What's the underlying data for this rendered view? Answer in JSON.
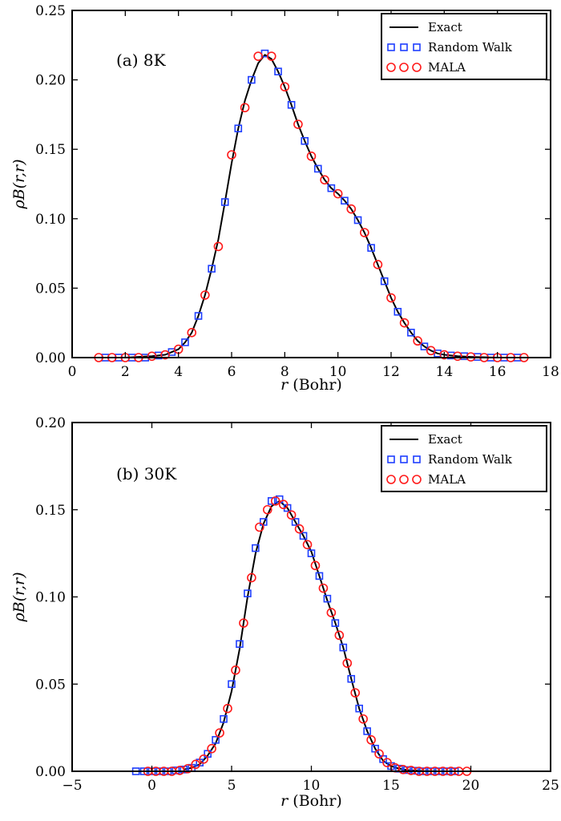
{
  "chart_data": [
    {
      "type": "line",
      "annotation": "(a) 8K",
      "xlabel": "r (Bohr)",
      "ylabel": "ρB(r,r)",
      "xlim": [
        0,
        18
      ],
      "ylim": [
        0,
        0.25
      ],
      "xticks": [
        "0",
        "2",
        "4",
        "6",
        "8",
        "10",
        "12",
        "14",
        "16",
        "18"
      ],
      "yticks": [
        "0.00",
        "0.05",
        "0.10",
        "0.15",
        "0.20",
        "0.25"
      ],
      "legend_position": "top-right",
      "series": [
        {
          "name": "Exact",
          "style": "line",
          "color": "#000000",
          "x": [
            1,
            2,
            3,
            3.25,
            3.5,
            3.75,
            4,
            4.25,
            4.5,
            4.75,
            5,
            5.25,
            5.5,
            5.75,
            6,
            6.25,
            6.5,
            6.75,
            7,
            7.25,
            7.5,
            7.75,
            8,
            8.25,
            8.5,
            8.75,
            9,
            9.25,
            9.5,
            9.75,
            10,
            10.25,
            10.5,
            10.75,
            11,
            11.25,
            11.5,
            11.75,
            12,
            12.25,
            12.5,
            12.75,
            13,
            13.25,
            13.5,
            13.75,
            14,
            14.5,
            15,
            16,
            17
          ],
          "y": [
            0,
            0,
            0.001,
            0.0015,
            0.002,
            0.004,
            0.006,
            0.011,
            0.018,
            0.03,
            0.045,
            0.064,
            0.085,
            0.112,
            0.14,
            0.165,
            0.185,
            0.2,
            0.212,
            0.218,
            0.215,
            0.206,
            0.195,
            0.182,
            0.168,
            0.156,
            0.145,
            0.136,
            0.128,
            0.122,
            0.118,
            0.113,
            0.107,
            0.099,
            0.09,
            0.079,
            0.067,
            0.055,
            0.043,
            0.033,
            0.025,
            0.018,
            0.012,
            0.008,
            0.005,
            0.003,
            0.002,
            0.001,
            0.0005,
            0,
            0
          ]
        },
        {
          "name": "Random Walk",
          "style": "square",
          "color": "#1f3fff",
          "x": [
            1.25,
            1.75,
            2.25,
            2.75,
            3.25,
            3.75,
            4.25,
            4.75,
            5.25,
            5.75,
            6.25,
            6.75,
            7.25,
            7.75,
            8.25,
            8.75,
            9.25,
            9.75,
            10.25,
            10.75,
            11.25,
            11.75,
            12.25,
            12.75,
            13.25,
            13.75,
            14.25,
            14.75,
            15.25,
            15.75,
            16.25,
            16.75
          ],
          "y": [
            0,
            0,
            0,
            0,
            0.0015,
            0.004,
            0.011,
            0.03,
            0.064,
            0.112,
            0.165,
            0.2,
            0.219,
            0.206,
            0.182,
            0.156,
            0.136,
            0.122,
            0.113,
            0.099,
            0.079,
            0.055,
            0.033,
            0.018,
            0.008,
            0.003,
            0.0015,
            0.001,
            0.0005,
            0,
            0,
            0
          ]
        },
        {
          "name": "MALA",
          "style": "circle",
          "color": "#ff1a1a",
          "x": [
            1,
            1.5,
            2,
            2.5,
            3,
            3.5,
            4,
            4.5,
            5,
            5.5,
            6,
            6.5,
            7,
            7.5,
            8,
            8.5,
            9,
            9.5,
            10,
            10.5,
            11,
            11.5,
            12,
            12.5,
            13,
            13.5,
            14,
            14.5,
            15,
            15.5,
            16,
            16.5,
            17
          ],
          "y": [
            0,
            0,
            0,
            0,
            0.001,
            0.002,
            0.006,
            0.018,
            0.045,
            0.08,
            0.146,
            0.18,
            0.217,
            0.217,
            0.195,
            0.168,
            0.145,
            0.128,
            0.118,
            0.107,
            0.09,
            0.067,
            0.043,
            0.025,
            0.012,
            0.005,
            0.002,
            0.001,
            0.0005,
            0,
            0,
            0,
            0
          ]
        }
      ]
    },
    {
      "type": "line",
      "annotation": "(b) 30K",
      "xlabel": "r (Bohr)",
      "ylabel": "ρB(r,r)",
      "xlim": [
        -5,
        25
      ],
      "ylim": [
        0,
        0.2
      ],
      "xticks": [
        "−5",
        "0",
        "5",
        "10",
        "15",
        "20",
        "25"
      ],
      "yticks": [
        "0.00",
        "0.05",
        "0.10",
        "0.15",
        "0.20"
      ],
      "legend_position": "top-right",
      "series": [
        {
          "name": "Exact",
          "style": "line",
          "color": "#000000",
          "x": [
            2,
            2.5,
            3,
            3.5,
            4,
            4.5,
            5,
            5.5,
            6,
            6.5,
            7,
            7.5,
            8,
            8.5,
            9,
            9.5,
            10,
            10.5,
            11,
            11.5,
            12,
            12.5,
            13,
            13.5,
            14,
            14.5,
            15,
            15.5,
            16,
            17,
            18
          ],
          "y": [
            0.001,
            0.002,
            0.004,
            0.009,
            0.016,
            0.028,
            0.046,
            0.07,
            0.1,
            0.125,
            0.142,
            0.152,
            0.155,
            0.151,
            0.143,
            0.135,
            0.126,
            0.112,
            0.098,
            0.085,
            0.071,
            0.053,
            0.036,
            0.023,
            0.013,
            0.006,
            0.003,
            0.0015,
            0.0007,
            0.0002,
            0
          ]
        },
        {
          "name": "Random Walk",
          "style": "square",
          "color": "#1f3fff",
          "x": [
            -1,
            -0.5,
            0,
            0.5,
            1,
            1.5,
            2,
            2.5,
            3,
            3.5,
            4,
            4.5,
            5,
            5.5,
            6,
            6.5,
            7,
            7.5,
            8,
            8.5,
            9,
            9.5,
            10,
            10.5,
            11,
            11.5,
            12,
            12.5,
            13,
            13.5,
            14,
            14.5,
            15,
            15.5,
            16,
            16.5,
            17,
            17.5,
            18,
            18.5,
            19
          ],
          "y": [
            0,
            0,
            0,
            0,
            0,
            0.0005,
            0.001,
            0.002,
            0.005,
            0.01,
            0.018,
            0.03,
            0.05,
            0.073,
            0.102,
            0.128,
            0.143,
            0.155,
            0.156,
            0.151,
            0.143,
            0.135,
            0.125,
            0.112,
            0.099,
            0.085,
            0.071,
            0.053,
            0.036,
            0.023,
            0.013,
            0.007,
            0.003,
            0.0015,
            0.0007,
            0.0003,
            0,
            0,
            0,
            0,
            0
          ]
        },
        {
          "name": "MALA",
          "style": "circle",
          "color": "#ff1a1a",
          "x": [
            -0.25,
            0.25,
            0.75,
            1.25,
            1.75,
            2.25,
            2.75,
            3.25,
            3.75,
            4.25,
            4.75,
            5.25,
            5.75,
            6.25,
            6.75,
            7.25,
            7.75,
            8.25,
            8.75,
            9.25,
            9.75,
            10.25,
            10.75,
            11.25,
            11.75,
            12.25,
            12.75,
            13.25,
            13.75,
            14.25,
            14.75,
            15.25,
            15.75,
            16.25,
            16.75,
            17.25,
            17.75,
            18.25,
            18.75,
            19.25,
            19.75
          ],
          "y": [
            0,
            0,
            0,
            0,
            0.0005,
            0.0015,
            0.004,
            0.007,
            0.013,
            0.022,
            0.036,
            0.058,
            0.085,
            0.111,
            0.14,
            0.15,
            0.155,
            0.153,
            0.147,
            0.139,
            0.13,
            0.118,
            0.105,
            0.091,
            0.078,
            0.062,
            0.045,
            0.03,
            0.018,
            0.01,
            0.005,
            0.002,
            0.001,
            0.0005,
            0,
            0,
            0,
            0,
            0,
            0,
            0
          ]
        }
      ]
    }
  ]
}
